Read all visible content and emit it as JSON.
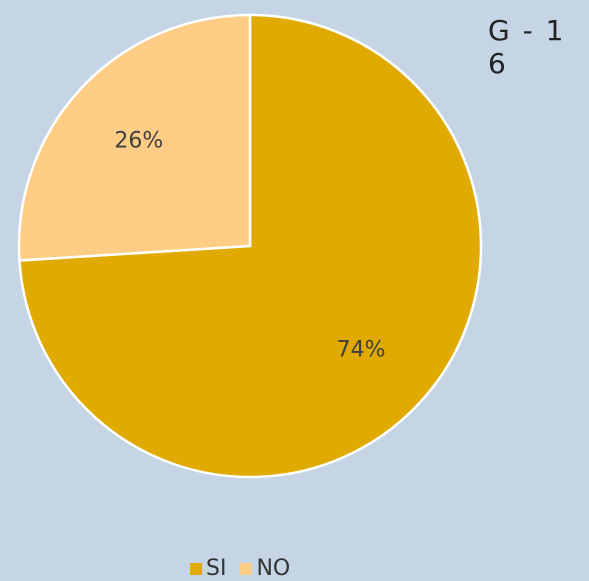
{
  "chart_id": "G - 1 6",
  "chart_data": {
    "type": "pie",
    "categories": [
      "SI",
      "NO"
    ],
    "values": [
      74,
      26
    ],
    "data_labels": [
      "74%",
      "26%"
    ],
    "colors": [
      "#e0aa00",
      "#ffcd85"
    ],
    "legend_position": "bottom",
    "title": "",
    "start_angle": "12 o'clock, clockwise"
  }
}
